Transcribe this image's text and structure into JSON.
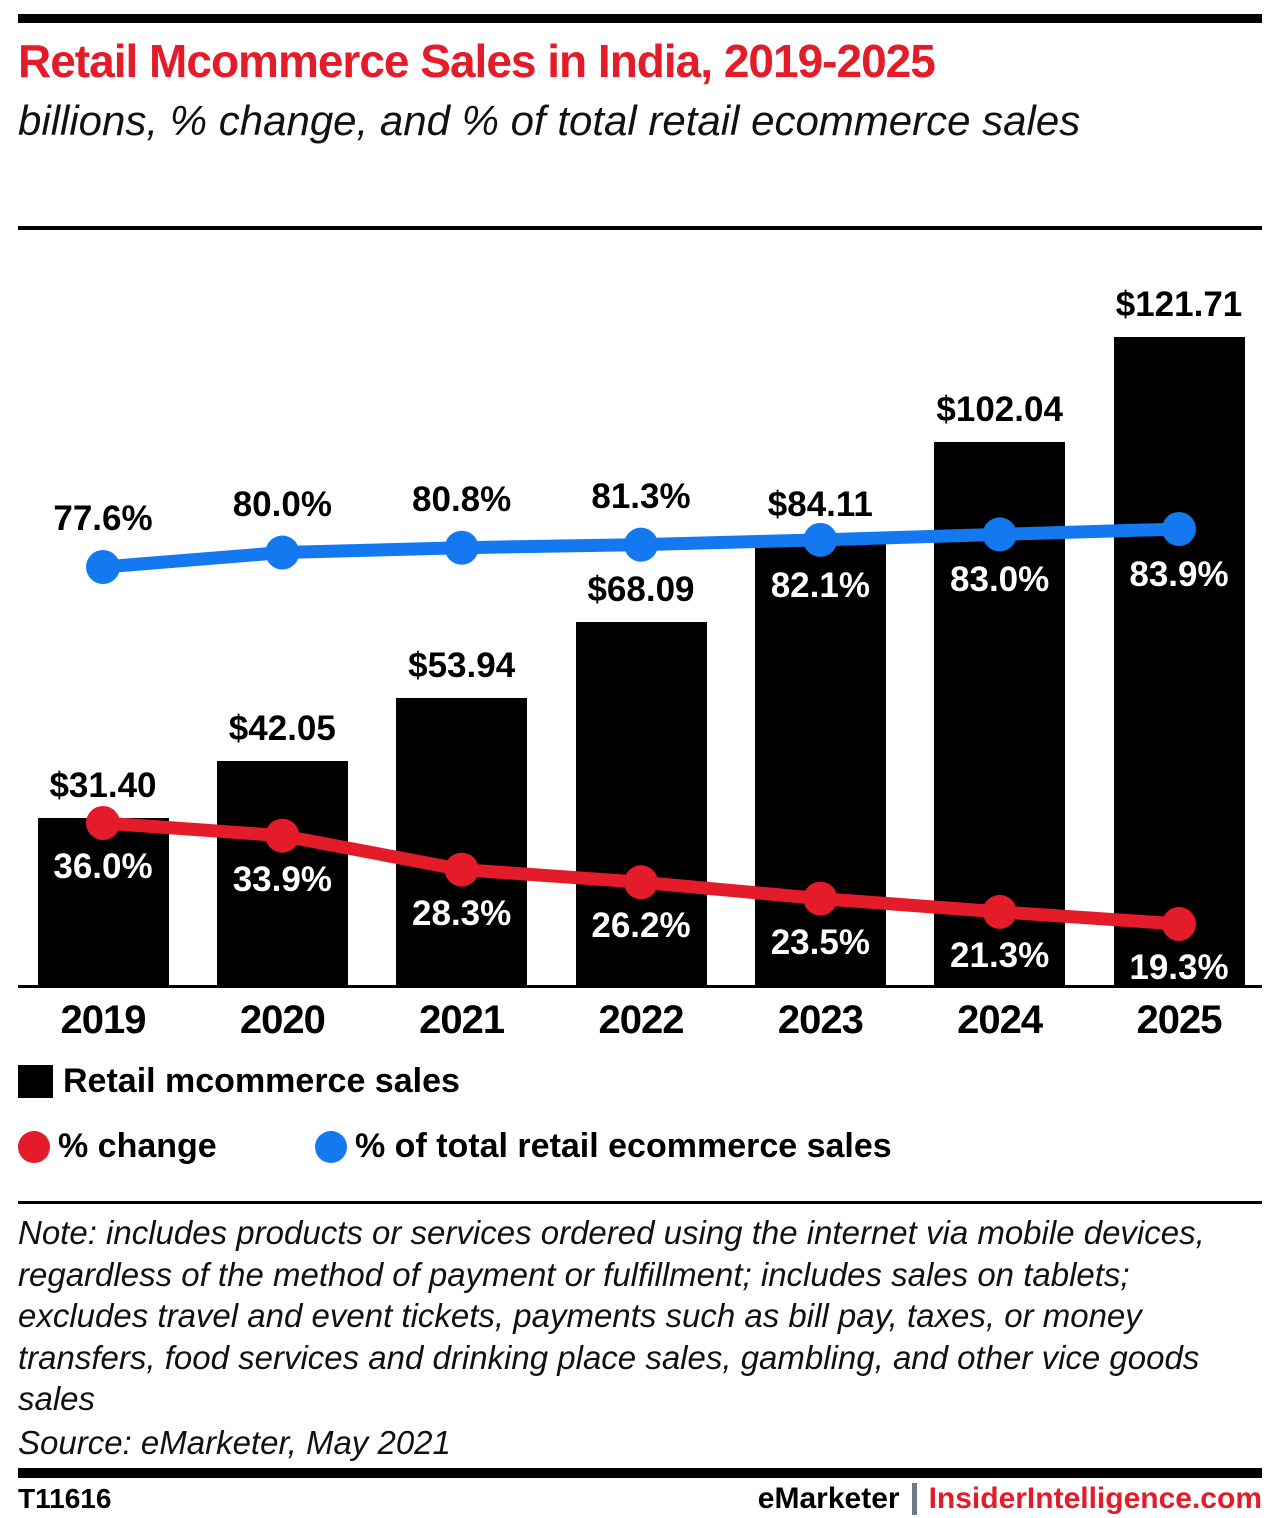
{
  "header": {
    "title": "Retail Mcommerce Sales in India, 2019-2025",
    "subtitle": "billions, % change, and % of total retail ecommerce sales"
  },
  "colors": {
    "accent_red": "#e41b28",
    "accent_blue": "#1479f0",
    "bar_black": "#000000",
    "pipe_gray": "#6e7a87"
  },
  "chart_data": {
    "type": "bar",
    "categories": [
      "2019",
      "2020",
      "2021",
      "2022",
      "2023",
      "2024",
      "2025"
    ],
    "series": [
      {
        "name": "Retail mcommerce sales",
        "type": "bar",
        "unit": "billions USD",
        "values": [
          31.4,
          42.05,
          53.94,
          68.09,
          84.11,
          102.04,
          121.71
        ],
        "labels": [
          "$31.40",
          "$42.05",
          "$53.94",
          "$68.09",
          "$84.11",
          "$102.04",
          "$121.71"
        ],
        "color": "#000000"
      },
      {
        "name": "% change",
        "type": "line",
        "unit": "percent",
        "values": [
          36.0,
          33.9,
          28.3,
          26.2,
          23.5,
          21.3,
          19.3
        ],
        "labels": [
          "36.0%",
          "33.9%",
          "28.3%",
          "26.2%",
          "23.5%",
          "21.3%",
          "19.3%"
        ],
        "label_styles": [
          "light-below",
          "light-below",
          "light-below",
          "light-below",
          "light-below",
          "light-below",
          "light-below"
        ],
        "color": "#e41b28"
      },
      {
        "name": "% of total retail ecommerce sales",
        "type": "line",
        "unit": "percent",
        "values": [
          77.6,
          80.0,
          80.8,
          81.3,
          82.1,
          83.0,
          83.9
        ],
        "labels": [
          "77.6%",
          "80.0%",
          "80.8%",
          "81.3%",
          "82.1%",
          "83.0%",
          "83.9%"
        ],
        "label_styles": [
          "dark-above",
          "dark-above",
          "dark-above",
          "dark-above",
          "light-below",
          "light-below",
          "light-below"
        ],
        "color": "#1479f0"
      }
    ],
    "title": "Retail Mcommerce Sales in India, 2019-2025",
    "xlabel": "",
    "ylabel": "",
    "grid": false,
    "legend_position": "bottom"
  },
  "note": "Note: includes products or services ordered using the internet via mobile devices, regardless of the method of payment or fulfillment; includes sales on tablets; excludes travel and event tickets, payments such as bill pay, taxes, or money transfers, food services and drinking place sales, gambling, and other vice goods sales",
  "source": "Source: eMarketer, May 2021",
  "footer": {
    "chart_id": "T11616",
    "brand": "eMarketer",
    "site": "InsiderIntelligence.com"
  }
}
